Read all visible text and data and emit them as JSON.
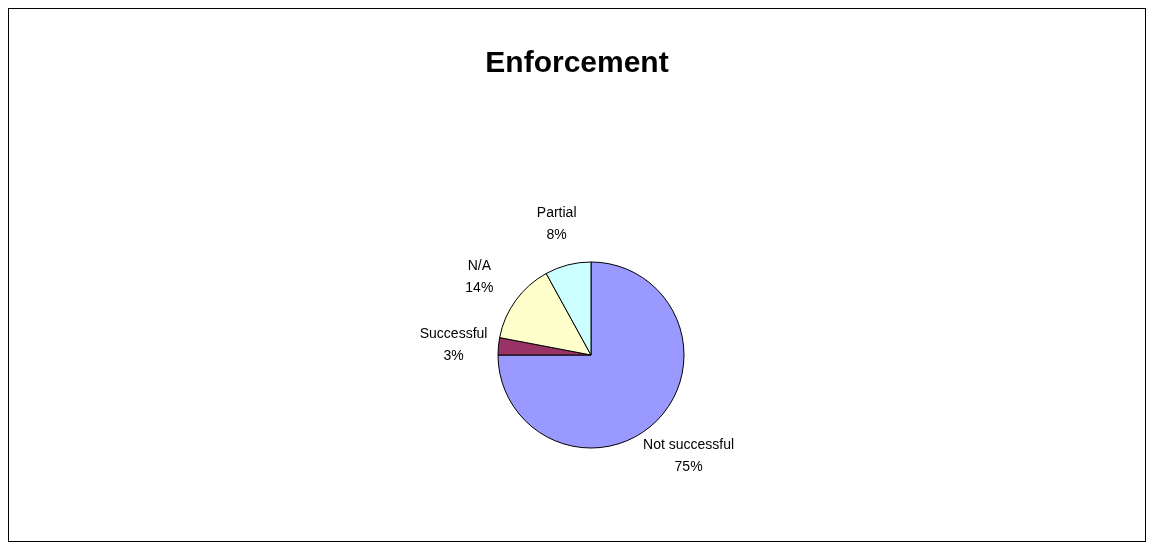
{
  "chart_data": {
    "type": "pie",
    "title": "Enforcement",
    "categories": [
      "Not successful",
      "Successful",
      "N/A",
      "Partial"
    ],
    "values": [
      75,
      3,
      14,
      8
    ],
    "value_labels": [
      "75%",
      "3%",
      "14%",
      "8%"
    ],
    "colors": [
      "#9999ff",
      "#993366",
      "#ffffcc",
      "#ccffff"
    ]
  }
}
